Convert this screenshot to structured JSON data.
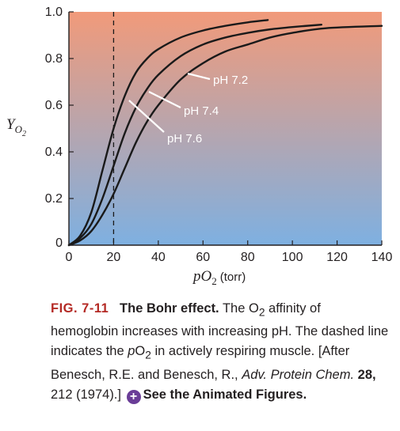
{
  "chart_data": {
    "type": "line",
    "xlabel_base": "pO",
    "xlabel_sub": "2",
    "xlabel_unit": "(torr)",
    "ylabel_base": "Y",
    "ylabel_sub": "O",
    "ylabel_subsub": "2",
    "xlim": [
      0,
      140
    ],
    "ylim": [
      0,
      1.0
    ],
    "xticks": [
      "0",
      "20",
      "40",
      "60",
      "80",
      "100",
      "120",
      "140"
    ],
    "yticks": [
      "0",
      "0.2",
      "0.4",
      "0.6",
      "0.8",
      "1.0"
    ],
    "background": {
      "top": "#f19a7a",
      "bottom": "#7eb0e1"
    },
    "curve_color": "#1a1a1a",
    "reference_line": {
      "x": 20,
      "style": "dashed"
    },
    "series": [
      {
        "name": "pH 7.6",
        "x": [
          0,
          5,
          10,
          15,
          20,
          25,
          30,
          35,
          40,
          50,
          60,
          70,
          80,
          89
        ],
        "y": [
          0,
          0.04,
          0.14,
          0.32,
          0.5,
          0.64,
          0.74,
          0.8,
          0.84,
          0.89,
          0.92,
          0.94,
          0.955,
          0.965
        ]
      },
      {
        "name": "pH 7.4",
        "x": [
          0,
          5,
          10,
          15,
          20,
          25,
          30,
          35,
          40,
          50,
          60,
          70,
          80,
          90,
          100,
          113
        ],
        "y": [
          0,
          0.03,
          0.09,
          0.2,
          0.34,
          0.48,
          0.59,
          0.67,
          0.73,
          0.81,
          0.86,
          0.89,
          0.91,
          0.925,
          0.935,
          0.945
        ]
      },
      {
        "name": "pH 7.2",
        "x": [
          0,
          5,
          10,
          15,
          20,
          25,
          30,
          35,
          40,
          50,
          60,
          70,
          80,
          90,
          100,
          115,
          140
        ],
        "y": [
          0,
          0.02,
          0.06,
          0.13,
          0.22,
          0.33,
          0.44,
          0.53,
          0.6,
          0.71,
          0.78,
          0.83,
          0.86,
          0.89,
          0.91,
          0.93,
          0.94
        ]
      }
    ],
    "annotations": [
      {
        "text": "pH 7.2",
        "series": "pH 7.2"
      },
      {
        "text": "pH 7.4",
        "series": "pH 7.4"
      },
      {
        "text": "pH 7.6",
        "series": "pH 7.6"
      }
    ]
  },
  "caption": {
    "fig_number": "FIG. 7-11",
    "title": "The Bohr effect.",
    "s1_a": "The O",
    "s1_sub": "2",
    "s1_b": " affinity of hemoglobin increases with increasing pH. The dashed line indicates the ",
    "s2_p": "p",
    "s2_o": "O",
    "s2_sub": "2",
    "s2_b": " in actively respiring muscle. [After Benesch, R.E. and Benesch, R., ",
    "journal": "Adv. Protein Chem.",
    "volume": "28,",
    "pages": " 212 (1974).]",
    "link_icon": "plus-circle-icon",
    "link_text": "See the Animated Figures."
  }
}
